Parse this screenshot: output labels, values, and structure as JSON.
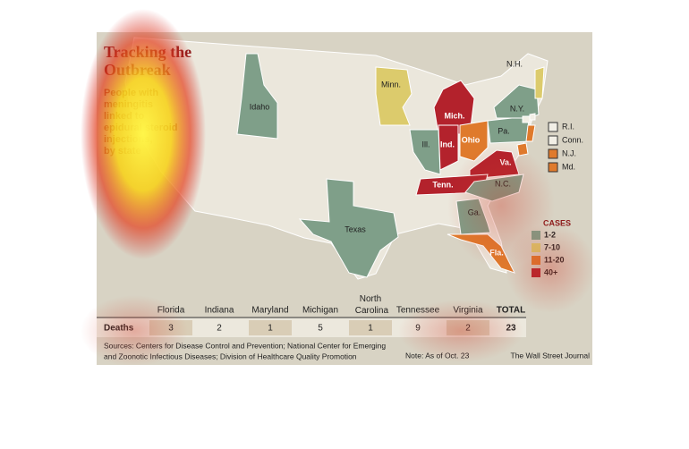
{
  "title_lines": [
    "Tracking the",
    "Outbreak"
  ],
  "subtitle_lines": [
    "People with",
    "meningitis",
    "linked to",
    "epidural steroid",
    "injections,",
    "by state"
  ],
  "states": [
    {
      "label": "Idaho",
      "color": "#7f9f89"
    },
    {
      "label": "Minn.",
      "color": "#dccb6c"
    },
    {
      "label": "Mich.",
      "color": "#b3222c"
    },
    {
      "label": "Ill.",
      "color": "#7f9f89"
    },
    {
      "label": "Ind.",
      "color": "#b3222c"
    },
    {
      "label": "Ohio",
      "color": "#df7a2c"
    },
    {
      "label": "Pa.",
      "color": "#7f9f89"
    },
    {
      "label": "N.Y.",
      "color": "#7f9f89"
    },
    {
      "label": "Va.",
      "color": "#b3222c"
    },
    {
      "label": "Tenn.",
      "color": "#b3222c"
    },
    {
      "label": "N.C.",
      "color": "#7f9f89"
    },
    {
      "label": "Ga.",
      "color": "#7f9f89"
    },
    {
      "label": "Fla.",
      "color": "#df7a2c"
    },
    {
      "label": "Texas",
      "color": "#7f9f89"
    },
    {
      "label": "N.H.",
      "color": "#dccb6c"
    }
  ],
  "small_states": [
    {
      "label": "R.I.",
      "color": "#f2efe6"
    },
    {
      "label": "Conn.",
      "color": "#f2efe6"
    },
    {
      "label": "N.J.",
      "color": "#df7a2c"
    },
    {
      "label": "Md.",
      "color": "#df7a2c"
    }
  ],
  "legend": {
    "title": "CASES",
    "items": [
      {
        "label": "1-2",
        "color": "#7f9f89"
      },
      {
        "label": "7-10",
        "color": "#dccb6c"
      },
      {
        "label": "11-20",
        "color": "#df7a2c"
      },
      {
        "label": "40+",
        "color": "#b3222c"
      }
    ]
  },
  "table": {
    "columns": [
      "Florida",
      "Indiana",
      "Maryland",
      "Michigan",
      "North Carolina",
      "Tennessee",
      "Virginia",
      "TOTAL"
    ],
    "row_label": "Deaths",
    "values": [
      "3",
      "2",
      "1",
      "5",
      "1",
      "9",
      "2",
      "23"
    ]
  },
  "source_lines": [
    "Sources: Centers for Disease Control and Prevention; National Center for Emerging",
    "and Zoonotic Infectious Diseases; Division of Healthcare Quality Promotion"
  ],
  "note": "Note: As of Oct. 23",
  "credit": "The Wall Street Journal"
}
